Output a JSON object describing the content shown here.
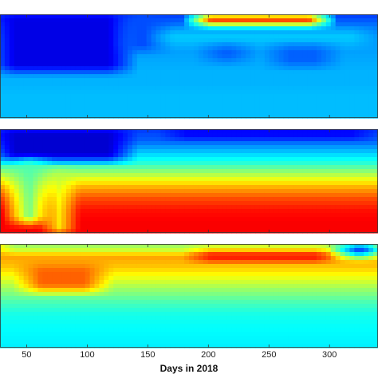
{
  "chart_data": {
    "type": "heatmap",
    "colormap": "jet",
    "xlabel": "Days in 2018",
    "xticks": [
      50,
      100,
      150,
      200,
      250,
      300
    ],
    "xtick_labels": [
      "50",
      "100",
      "150",
      "200",
      "250",
      "300"
    ],
    "xlim": [
      28,
      340
    ],
    "panels": [
      {
        "name": "",
        "y_profile": [
          0.18,
          0.24,
          0.27,
          0.28,
          0.29,
          0.3,
          0.3,
          0.31,
          0.31,
          0.31
        ],
        "features": [
          {
            "x0": 28,
            "x1": 130,
            "y0": 0.0,
            "y1": 0.55,
            "value": 0.1
          },
          {
            "x0": 130,
            "x1": 160,
            "y0": 0.0,
            "y1": 0.35,
            "value": 0.2
          },
          {
            "x0": 190,
            "x1": 295,
            "y0": 0.0,
            "y1": 0.1,
            "value": 0.9
          },
          {
            "x0": 160,
            "x1": 330,
            "y0": 0.15,
            "y1": 0.3,
            "value": 0.32
          },
          {
            "x0": 200,
            "x1": 230,
            "y0": 0.3,
            "y1": 0.45,
            "value": 0.22
          },
          {
            "x0": 255,
            "x1": 300,
            "y0": 0.3,
            "y1": 0.5,
            "value": 0.22
          }
        ]
      },
      {
        "name": "",
        "y_profile": [
          0.18,
          0.22,
          0.32,
          0.42,
          0.56,
          0.7,
          0.8,
          0.86,
          0.88,
          0.88
        ],
        "features": [
          {
            "x0": 28,
            "x1": 130,
            "y0": 0.0,
            "y1": 0.3,
            "value": 0.08
          },
          {
            "x0": 170,
            "x1": 330,
            "y0": 0.0,
            "y1": 0.08,
            "value": 0.1
          },
          {
            "x0": 42,
            "x1": 62,
            "y0": 0.3,
            "y1": 0.9,
            "value": 0.45
          },
          {
            "x0": 72,
            "x1": 82,
            "y0": 0.4,
            "y1": 1.0,
            "value": 0.55
          }
        ]
      },
      {
        "name": "",
        "y_profile": [
          0.7,
          0.72,
          0.68,
          0.6,
          0.52,
          0.45,
          0.4,
          0.38,
          0.37,
          0.36
        ],
        "features": [
          {
            "x0": 190,
            "x1": 300,
            "y0": 0.0,
            "y1": 0.15,
            "value": 0.92
          },
          {
            "x0": 28,
            "x1": 340,
            "y0": 0.0,
            "y1": 0.06,
            "value": 0.45
          },
          {
            "x0": 310,
            "x1": 340,
            "y0": 0.0,
            "y1": 0.12,
            "value": 0.2
          },
          {
            "x0": 50,
            "x1": 110,
            "y0": 0.2,
            "y1": 0.45,
            "value": 0.78
          }
        ]
      }
    ]
  }
}
